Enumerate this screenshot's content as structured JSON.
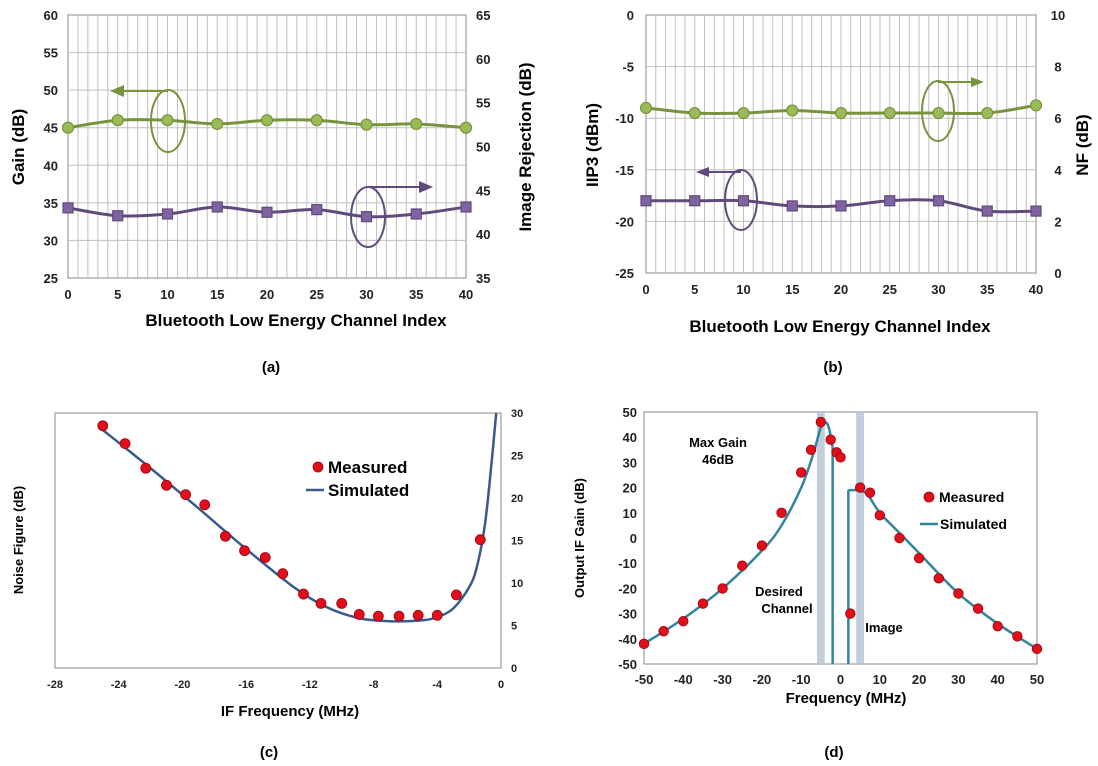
{
  "colors": {
    "green": "#77933C",
    "green_marker": "#9BBB59",
    "purple": "#604A7B",
    "purple_marker": "#8064A2",
    "navy": "#3A5A8C",
    "teal": "#31859C",
    "red_marker": "#E0101A",
    "grid": "#BFBFBF",
    "band": "#B8C4D6"
  },
  "chart_data": [
    {
      "panel": "(a)",
      "type": "line",
      "xlabel": "Bluetooth Low Energy Channel Index",
      "ylabel": "Gain (dB)",
      "y2label": "Image Rejection (dB)",
      "xlim": [
        0,
        40
      ],
      "xticks": [
        0,
        5,
        10,
        15,
        20,
        25,
        30,
        35,
        40
      ],
      "ylim": [
        25,
        60
      ],
      "yticks": [
        25,
        30,
        35,
        40,
        45,
        50,
        55,
        60
      ],
      "y2lim": [
        35,
        65
      ],
      "y2ticks": [
        35,
        40,
        45,
        50,
        55,
        60,
        65
      ],
      "grid": true,
      "x": [
        0,
        5,
        10,
        15,
        20,
        25,
        30,
        35,
        40
      ],
      "series": [
        {
          "axis": "left",
          "marker": "circle",
          "values": [
            45.0,
            46.0,
            46.0,
            45.5,
            46.0,
            46.0,
            45.4,
            45.5,
            45.0
          ]
        },
        {
          "axis": "right",
          "marker": "square",
          "values": [
            43.0,
            42.1,
            42.3,
            43.1,
            42.5,
            42.8,
            42.0,
            42.3,
            43.1
          ]
        }
      ]
    },
    {
      "panel": "(b)",
      "type": "line",
      "xlabel": "Bluetooth Low Energy Channel Index",
      "ylabel": "IIP3 (dBm)",
      "y2label": "NF (dB)",
      "xlim": [
        0,
        40
      ],
      "xticks": [
        0,
        5,
        10,
        15,
        20,
        25,
        30,
        35,
        40
      ],
      "ylim": [
        -25,
        0
      ],
      "yticks": [
        -25,
        -20,
        -15,
        -10,
        -5,
        0
      ],
      "y2lim": [
        0,
        10
      ],
      "y2ticks": [
        0,
        2,
        4,
        6,
        8,
        10
      ],
      "grid": true,
      "x": [
        0,
        5,
        10,
        15,
        20,
        25,
        30,
        35,
        40
      ],
      "series": [
        {
          "axis": "right",
          "marker": "circle",
          "values": [
            6.4,
            6.2,
            6.2,
            6.3,
            6.2,
            6.2,
            6.2,
            6.2,
            6.5
          ]
        },
        {
          "axis": "left",
          "marker": "square",
          "values": [
            -18.0,
            -18.0,
            -18.0,
            -18.5,
            -18.5,
            -18.0,
            -18.0,
            -19.0,
            -19.0
          ]
        }
      ]
    },
    {
      "panel": "(c)",
      "type": "scatter",
      "xlabel": "IF Frequency (MHz)",
      "ylabel": "Noise Figure (dB)",
      "xlim": [
        -28,
        0
      ],
      "xticks": [
        -28,
        -24,
        -20,
        -16,
        -12,
        -8,
        -4,
        0
      ],
      "y2lim": [
        0,
        30
      ],
      "y2ticks": [
        0,
        5,
        10,
        15,
        20,
        25,
        30
      ],
      "grid": false,
      "legend": "upper-right",
      "series": [
        {
          "name": "Measured",
          "marker": "circle",
          "x": [
            -25.0,
            -23.6,
            -22.3,
            -21.0,
            -19.8,
            -18.6,
            -17.3,
            -16.1,
            -14.8,
            -13.7,
            -12.4,
            -11.3,
            -10.0,
            -8.9,
            -7.7,
            -6.4,
            -5.2,
            -4.0,
            -2.8,
            -1.3
          ],
          "y": [
            28.5,
            26.4,
            23.5,
            21.5,
            20.4,
            19.2,
            15.5,
            13.8,
            13.0,
            11.1,
            8.7,
            7.6,
            7.6,
            6.3,
            6.1,
            6.1,
            6.2,
            6.2,
            8.6,
            15.1
          ]
        },
        {
          "name": "Simulated",
          "marker": "line",
          "x": [
            -25.0,
            -22.0,
            -19.0,
            -16.0,
            -13.0,
            -11.0,
            -9.0,
            -7.0,
            -5.0,
            -4.0,
            -3.0,
            -2.0,
            -1.5,
            -1.0,
            -0.6,
            -0.3
          ],
          "y": [
            28.0,
            23.5,
            18.8,
            14.0,
            9.5,
            7.2,
            5.9,
            5.5,
            5.6,
            6.0,
            7.0,
            9.5,
            12.0,
            17.0,
            24.0,
            30.0
          ]
        }
      ]
    },
    {
      "panel": "(d)",
      "type": "scatter",
      "xlabel": "Frequency (MHz)",
      "ylabel": "Output IF Gain (dB)",
      "xlim": [
        -50,
        50
      ],
      "xticks": [
        -50,
        -40,
        -30,
        -20,
        -10,
        0,
        10,
        20,
        30,
        40,
        50
      ],
      "ylim": [
        -50,
        50
      ],
      "yticks": [
        -50,
        -40,
        -30,
        -20,
        -10,
        0,
        10,
        20,
        30,
        40,
        50
      ],
      "grid": false,
      "legend": "right",
      "annotations": [
        "Max Gain",
        "46dB",
        "Desired",
        "Channel",
        "Image"
      ],
      "series": [
        {
          "name": "Measured",
          "marker": "circle",
          "x": [
            -50,
            -45,
            -40,
            -35,
            -30,
            -25,
            -20,
            -15,
            -10,
            -7.5,
            -5,
            -2.5,
            -1,
            0,
            2.5,
            5,
            7.5,
            10,
            15,
            20,
            25,
            30,
            35,
            40,
            45,
            50
          ],
          "y": [
            -42,
            -37,
            -33,
            -26,
            -20,
            -11,
            -3,
            10,
            26,
            35,
            46,
            39,
            34,
            32,
            -30,
            20,
            18,
            9,
            0,
            -8,
            -16,
            -22,
            -28,
            -35,
            -39,
            -44
          ]
        },
        {
          "name": "Simulated",
          "marker": "line",
          "x": [
            -50,
            -40,
            -30,
            -20,
            -15,
            -10,
            -7,
            -5,
            -4,
            -3,
            -2,
            -2,
            2,
            2,
            4,
            5,
            7,
            10,
            15,
            20,
            30,
            40,
            50
          ],
          "y": [
            -42,
            -32,
            -20,
            -5,
            5,
            20,
            33,
            44,
            46,
            44,
            36,
            -50,
            -50,
            19,
            19,
            19,
            17,
            10,
            2,
            -6,
            -22,
            -34,
            -44
          ]
        }
      ]
    }
  ]
}
